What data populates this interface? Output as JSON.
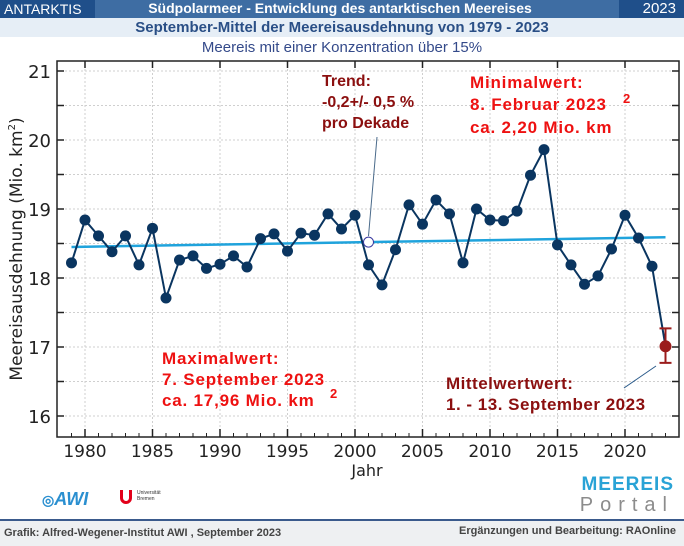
{
  "header": {
    "region": "ANTARKTIS",
    "title": "Südpolarmeer - Entwicklung des antarktischen  Meereises",
    "year": "2023",
    "subtitle": "September-Mittel der Meereisausdehnung von 1979 - 2023",
    "note": "Meereis mit einer Konzentration über 15%"
  },
  "annotations": {
    "trend": [
      "Trend:",
      "-0,2+/- 0,5 %",
      "pro Dekade"
    ],
    "minimal": [
      "Minimalwert:",
      "8. Februar 2023",
      "ca. 2,20 Mio. km",
      "2"
    ],
    "maximal": [
      "Maximalwert:",
      "7. September 2023",
      "ca. 17,96  Mio. km",
      "2"
    ],
    "mittel": [
      "Mittelwertwert:",
      "1. - 13. September 2023"
    ]
  },
  "logos": {
    "awi": "AWI",
    "uni": [
      "Universität",
      "Bremen"
    ],
    "meereis": "MEEREIS",
    "portal": "Portal"
  },
  "footer": {
    "left": "Grafik: Alfred-Wegener-Institut AWI , September 2023",
    "right": "Ergänzungen und Bearbeitung: RAOnline"
  },
  "colors": {
    "series": "#0a3560",
    "trend": "#1fa3dc",
    "current": "#9b1c1c",
    "red": "#ee1111",
    "darkred": "#8b0f0f"
  },
  "chart_data": {
    "type": "line",
    "xlabel": "Jahr",
    "ylabel": "Meereisausdehnung (Mio. km",
    "ylabel_sup": "2",
    "ylabel_end": ")",
    "xlim": [
      1978.5,
      2024.2
    ],
    "ylim": [
      15.7,
      21.15
    ],
    "xticks": [
      1980,
      1985,
      1990,
      1995,
      2000,
      2005,
      2010,
      2015,
      2020
    ],
    "yticks": [
      16,
      17,
      18,
      19,
      20,
      21
    ],
    "grid": true,
    "series": [
      {
        "name": "September-Mittel",
        "x": [
          1979,
          1980,
          1981,
          1982,
          1983,
          1984,
          1985,
          1986,
          1987,
          1988,
          1989,
          1990,
          1991,
          1992,
          1993,
          1994,
          1995,
          1996,
          1997,
          1998,
          1999,
          2000,
          2001,
          2002,
          2003,
          2004,
          2005,
          2006,
          2007,
          2008,
          2009,
          2010,
          2011,
          2012,
          2013,
          2014,
          2015,
          2016,
          2017,
          2018,
          2019,
          2020,
          2021,
          2022,
          2023
        ],
        "values": [
          18.22,
          18.84,
          18.61,
          18.38,
          18.61,
          18.19,
          18.72,
          17.71,
          18.26,
          18.32,
          18.14,
          18.2,
          18.32,
          18.16,
          18.57,
          18.64,
          18.39,
          18.65,
          18.62,
          18.93,
          18.71,
          18.91,
          18.19,
          17.9,
          18.41,
          19.06,
          18.78,
          19.13,
          18.93,
          18.22,
          19.0,
          18.84,
          18.83,
          18.97,
          19.49,
          19.86,
          18.48,
          18.19,
          17.91,
          18.03,
          18.42,
          18.91,
          18.58,
          18.17,
          17.01
        ]
      }
    ],
    "trend_line": {
      "x": [
        1979,
        2023
      ],
      "y": [
        18.45,
        18.59
      ]
    },
    "trend_marker": {
      "x": 2001,
      "y": 18.52
    },
    "current": {
      "x": 2023,
      "y": 17.01,
      "err_low": 16.77,
      "err_high": 17.27
    }
  }
}
